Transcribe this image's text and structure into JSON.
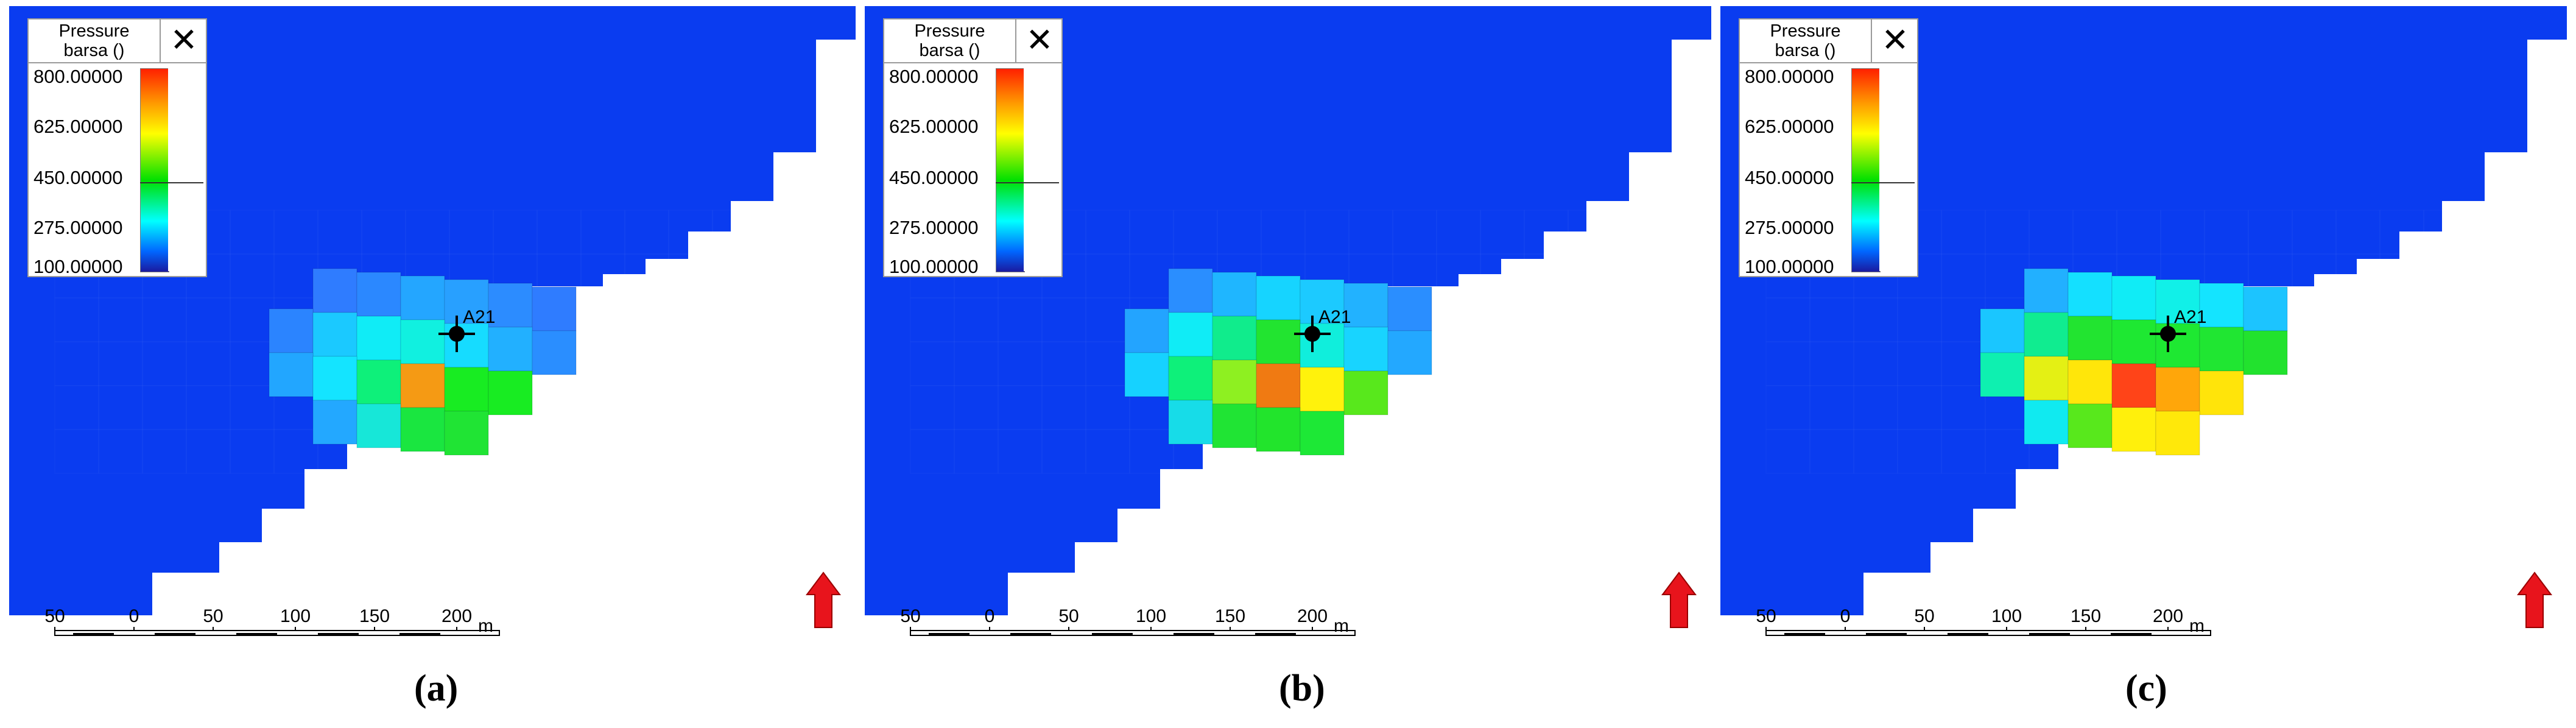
{
  "legend": {
    "title_line1": "Pressure",
    "title_line2": "barsa ()",
    "close_glyph": "✕",
    "ticks": [
      "800.00000",
      "625.00000",
      "450.00000",
      "275.00000",
      "100.00000"
    ],
    "gradient_colors": [
      "#ff2000",
      "#ff9a00",
      "#ffff00",
      "#00e000",
      "#00ffff",
      "#0066ff",
      "#1a1aa0"
    ]
  },
  "well": {
    "name": "A21"
  },
  "scale_bar": {
    "ticks": [
      "50",
      "0",
      "50",
      "100",
      "150",
      "200"
    ],
    "unit": "m"
  },
  "north_arrow": {
    "icon": "red-arrow-up-icon",
    "color": "#e8141c"
  },
  "background_color": "#0a3cf0",
  "panels": [
    {
      "label": "(a)",
      "hot_cells": [
        {
          "c": 7,
          "r": 4,
          "color": "#2f7cff"
        },
        {
          "c": 8,
          "r": 4,
          "color": "#2b88ff"
        },
        {
          "c": 9,
          "r": 4,
          "color": "#24a6ff"
        },
        {
          "c": 10,
          "r": 4,
          "color": "#28a0ff"
        },
        {
          "c": 11,
          "r": 4,
          "color": "#2c8cff"
        },
        {
          "c": 12,
          "r": 4,
          "color": "#2f7cff"
        },
        {
          "c": 6,
          "r": 5,
          "color": "#2b84ff"
        },
        {
          "c": 7,
          "r": 5,
          "color": "#1bc9ff"
        },
        {
          "c": 8,
          "r": 5,
          "color": "#10ecf6"
        },
        {
          "c": 9,
          "r": 5,
          "color": "#11f0e0"
        },
        {
          "c": 10,
          "r": 5,
          "color": "#16dcff"
        },
        {
          "c": 11,
          "r": 5,
          "color": "#22b0ff"
        },
        {
          "c": 12,
          "r": 5,
          "color": "#2a8eff"
        },
        {
          "c": 6,
          "r": 6,
          "color": "#22a6ff"
        },
        {
          "c": 7,
          "r": 6,
          "color": "#14e4ff"
        },
        {
          "c": 8,
          "r": 6,
          "color": "#0ef07a"
        },
        {
          "c": 9,
          "r": 6,
          "color": "#f59a14"
        },
        {
          "c": 10,
          "r": 6,
          "color": "#18ec22"
        },
        {
          "c": 11,
          "r": 6,
          "color": "#18ec22"
        },
        {
          "c": 7,
          "r": 7,
          "color": "#23a8ff"
        },
        {
          "c": 8,
          "r": 7,
          "color": "#17e7d8"
        },
        {
          "c": 9,
          "r": 7,
          "color": "#1ae640"
        },
        {
          "c": 10,
          "r": 7,
          "color": "#20e434"
        }
      ]
    },
    {
      "label": "(b)",
      "hot_cells": [
        {
          "c": 7,
          "r": 4,
          "color": "#2a8eff"
        },
        {
          "c": 8,
          "r": 4,
          "color": "#1fb6ff"
        },
        {
          "c": 9,
          "r": 4,
          "color": "#16d4ff"
        },
        {
          "c": 10,
          "r": 4,
          "color": "#1ccaff"
        },
        {
          "c": 11,
          "r": 4,
          "color": "#22b2ff"
        },
        {
          "c": 12,
          "r": 4,
          "color": "#2a8eff"
        },
        {
          "c": 6,
          "r": 5,
          "color": "#23a4ff"
        },
        {
          "c": 7,
          "r": 5,
          "color": "#10ecf6"
        },
        {
          "c": 8,
          "r": 5,
          "color": "#10ec8c"
        },
        {
          "c": 9,
          "r": 5,
          "color": "#22e430"
        },
        {
          "c": 10,
          "r": 5,
          "color": "#10eedc"
        },
        {
          "c": 11,
          "r": 5,
          "color": "#18d4ff"
        },
        {
          "c": 12,
          "r": 5,
          "color": "#23a8ff"
        },
        {
          "c": 6,
          "r": 6,
          "color": "#16d2ff"
        },
        {
          "c": 7,
          "r": 6,
          "color": "#0ef07a"
        },
        {
          "c": 8,
          "r": 6,
          "color": "#8ef021"
        },
        {
          "c": 9,
          "r": 6,
          "color": "#f07a12"
        },
        {
          "c": 10,
          "r": 6,
          "color": "#fff20c"
        },
        {
          "c": 11,
          "r": 6,
          "color": "#58e81c"
        },
        {
          "c": 7,
          "r": 7,
          "color": "#17dce8"
        },
        {
          "c": 8,
          "r": 7,
          "color": "#20e434"
        },
        {
          "c": 9,
          "r": 7,
          "color": "#22e42c"
        },
        {
          "c": 10,
          "r": 7,
          "color": "#1de836"
        }
      ]
    },
    {
      "label": "(c)",
      "hot_cells": [
        {
          "c": 7,
          "r": 4,
          "color": "#22b0ff"
        },
        {
          "c": 8,
          "r": 4,
          "color": "#14e0ff"
        },
        {
          "c": 9,
          "r": 4,
          "color": "#10ecf6"
        },
        {
          "c": 10,
          "r": 4,
          "color": "#11f0e8"
        },
        {
          "c": 11,
          "r": 4,
          "color": "#14e4ff"
        },
        {
          "c": 12,
          "r": 4,
          "color": "#1cc4ff"
        },
        {
          "c": 6,
          "r": 5,
          "color": "#1ac6ff"
        },
        {
          "c": 7,
          "r": 5,
          "color": "#10ec90"
        },
        {
          "c": 8,
          "r": 5,
          "color": "#22e430"
        },
        {
          "c": 9,
          "r": 5,
          "color": "#1ee832"
        },
        {
          "c": 10,
          "r": 5,
          "color": "#1ee832"
        },
        {
          "c": 11,
          "r": 5,
          "color": "#20e632"
        },
        {
          "c": 12,
          "r": 5,
          "color": "#22e22e"
        },
        {
          "c": 6,
          "r": 6,
          "color": "#0ef0b0"
        },
        {
          "c": 7,
          "r": 6,
          "color": "#e4f014"
        },
        {
          "c": 8,
          "r": 6,
          "color": "#ffe60a"
        },
        {
          "c": 9,
          "r": 6,
          "color": "#ff4418"
        },
        {
          "c": 10,
          "r": 6,
          "color": "#ffa60a"
        },
        {
          "c": 11,
          "r": 6,
          "color": "#ffe40a"
        },
        {
          "c": 7,
          "r": 7,
          "color": "#10eaf0"
        },
        {
          "c": 8,
          "r": 7,
          "color": "#58e81c"
        },
        {
          "c": 9,
          "r": 7,
          "color": "#fff00c"
        },
        {
          "c": 10,
          "r": 7,
          "color": "#ffe80a"
        }
      ]
    }
  ]
}
